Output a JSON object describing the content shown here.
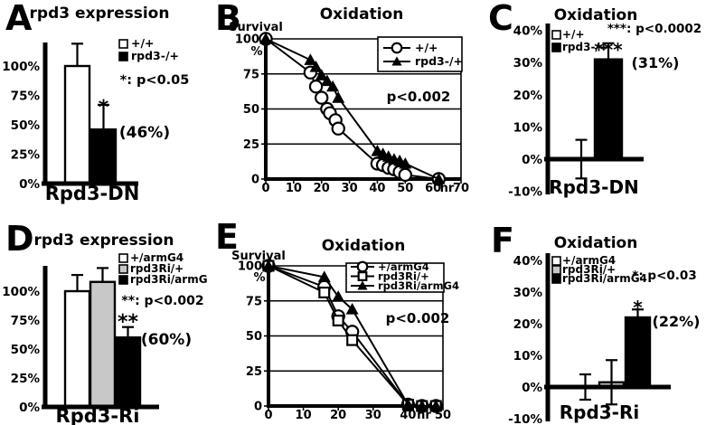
{
  "figure": {
    "background": "#ffffff",
    "ink_color": "#000000",
    "gray_fill": "#c8c8c8"
  },
  "chart_data": [
    {
      "panel": "A",
      "type": "bar",
      "title": "rpd3 expression",
      "xlabel": "Rpd3-DN",
      "ylim": [
        0,
        119
      ],
      "yticks": [
        0,
        25,
        50,
        75,
        100
      ],
      "ytick_labels": [
        "0%",
        "25%",
        "50%",
        "75%",
        "100%"
      ],
      "categories": [
        "+/+",
        "rpd3-/+"
      ],
      "values": [
        100,
        46
      ],
      "errors": [
        {
          "up": 19
        },
        {
          "up": 21
        }
      ],
      "bar_colors": [
        "#ffffff",
        "#000000"
      ],
      "legend": [
        {
          "label": "+/+",
          "color": "#ffffff"
        },
        {
          "label": "rpd3-/+",
          "color": "#000000"
        }
      ],
      "sig": {
        "text": "*",
        "bar": 1
      },
      "annotation": {
        "text": "(46%)",
        "bar": 1
      },
      "p_label": "*: p<0.05"
    },
    {
      "panel": "B",
      "type": "line",
      "title": "Oxidation",
      "ylabel": "Survival",
      "ylabel_unit": "%",
      "xlabel_unit": "hr",
      "xlim": [
        0,
        70
      ],
      "xticks": [
        0,
        10,
        20,
        30,
        40,
        50,
        60,
        70
      ],
      "ylim": [
        0,
        100
      ],
      "yticks": [
        0,
        25,
        50,
        75,
        100
      ],
      "grid": true,
      "legend_position": "top-right",
      "p_label": "p<0.002",
      "series": [
        {
          "name": "+/+",
          "marker": "circle-open",
          "points": [
            [
              0,
              100
            ],
            [
              16,
              76
            ],
            [
              18,
              66
            ],
            [
              20,
              58
            ],
            [
              22,
              50
            ],
            [
              23,
              47
            ],
            [
              25,
              42
            ],
            [
              26,
              36
            ],
            [
              40,
              11
            ],
            [
              42,
              10
            ],
            [
              44,
              8
            ],
            [
              46,
              7
            ],
            [
              48,
              5
            ],
            [
              50,
              3
            ],
            [
              62,
              0
            ]
          ]
        },
        {
          "name": "rpd3-/+",
          "marker": "triangle-filled",
          "points": [
            [
              0,
              100
            ],
            [
              16,
              85
            ],
            [
              18,
              80
            ],
            [
              20,
              74
            ],
            [
              22,
              70
            ],
            [
              24,
              66
            ],
            [
              26,
              58
            ],
            [
              40,
              20
            ],
            [
              42,
              18
            ],
            [
              44,
              16
            ],
            [
              46,
              14
            ],
            [
              48,
              13
            ],
            [
              50,
              11
            ],
            [
              62,
              0
            ]
          ]
        }
      ]
    },
    {
      "panel": "C",
      "type": "bar",
      "title": "Oxidation",
      "xlabel": "Rpd3-DN",
      "ylim": [
        -10,
        40
      ],
      "yticks": [
        -10,
        0,
        10,
        20,
        30,
        40
      ],
      "ytick_labels": [
        "-10%",
        "0%",
        "10%",
        "20%",
        "30%",
        "40%"
      ],
      "categories": [
        "+/+",
        "rpd3-/+"
      ],
      "values": [
        0,
        31
      ],
      "errors": [
        {
          "up": 6,
          "down": 6
        },
        {
          "up": 5
        }
      ],
      "bar_colors": [
        "#ffffff",
        "#000000"
      ],
      "legend": [
        {
          "label": "+/+",
          "color": "#ffffff"
        },
        {
          "label": "rpd3-/+",
          "color": "#000000"
        }
      ],
      "sig": {
        "text": "***",
        "bar": 1
      },
      "annotation": {
        "text": "(31%)",
        "bar": 1
      },
      "p_label": "***: p<0.0002"
    },
    {
      "panel": "D",
      "type": "bar",
      "title": "rpd3 expression",
      "xlabel": "Rpd3-Ri",
      "ylim": [
        0,
        119
      ],
      "yticks": [
        0,
        25,
        50,
        75,
        100
      ],
      "ytick_labels": [
        "0%",
        "25%",
        "50%",
        "75%",
        "100%"
      ],
      "categories": [
        "+/armG4",
        "rpd3Ri/+",
        "rpd3Ri/armG4"
      ],
      "values": [
        100,
        108,
        60
      ],
      "errors": [
        {
          "up": 14
        },
        {
          "up": 12
        },
        {
          "up": 9
        }
      ],
      "bar_colors": [
        "#ffffff",
        "#c8c8c8",
        "#000000"
      ],
      "legend": [
        {
          "label": "+/armG4",
          "color": "#ffffff"
        },
        {
          "label": "rpd3Ri/+",
          "color": "#c8c8c8"
        },
        {
          "label": "rpd3Ri/armG4",
          "color": "#000000"
        }
      ],
      "sig": {
        "text": "**",
        "bar": 2
      },
      "annotation": {
        "text": "(60%)",
        "bar": 2
      },
      "p_label": "**: p<0.002"
    },
    {
      "panel": "E",
      "type": "line",
      "title": "Oxidation",
      "ylabel": "Survival",
      "ylabel_unit": "%",
      "xlabel_unit": "hr",
      "xlim": [
        0,
        50
      ],
      "xticks": [
        0,
        10,
        20,
        30,
        40,
        50
      ],
      "ylim": [
        0,
        100
      ],
      "yticks": [
        0,
        25,
        50,
        75,
        100
      ],
      "grid": true,
      "legend_position": "top-right",
      "p_label": "p<0.002",
      "series": [
        {
          "name": "+/armG4",
          "marker": "circle-open",
          "points": [
            [
              0,
              100
            ],
            [
              16,
              85
            ],
            [
              20,
              64
            ],
            [
              24,
              53
            ],
            [
              40,
              1
            ],
            [
              44,
              0
            ],
            [
              48,
              0
            ]
          ]
        },
        {
          "name": "rpd3Ri/+",
          "marker": "square-open",
          "points": [
            [
              0,
              100
            ],
            [
              16,
              81
            ],
            [
              20,
              61
            ],
            [
              24,
              47
            ],
            [
              40,
              1
            ],
            [
              44,
              0
            ],
            [
              48,
              0
            ]
          ]
        },
        {
          "name": "rpd3Ri/armG4",
          "marker": "triangle-filled",
          "points": [
            [
              0,
              100
            ],
            [
              16,
              92
            ],
            [
              20,
              78
            ],
            [
              24,
              69
            ],
            [
              40,
              1
            ],
            [
              44,
              0
            ],
            [
              48,
              0
            ]
          ]
        }
      ]
    },
    {
      "panel": "F",
      "type": "bar",
      "title": "Oxidation",
      "xlabel": "Rpd3-Ri",
      "ylim": [
        -10,
        40
      ],
      "yticks": [
        -10,
        0,
        10,
        20,
        30,
        40
      ],
      "ytick_labels": [
        "-10%",
        "0%",
        "10%",
        "20%",
        "30%",
        "40%"
      ],
      "categories": [
        "+/armG4",
        "rpd3Ri/+",
        "rpd3Ri/armG4"
      ],
      "values": [
        0,
        1.5,
        22
      ],
      "errors": [
        {
          "up": 4,
          "down": 4
        },
        {
          "up": 7,
          "down": 7
        },
        {
          "up": 2.5
        }
      ],
      "bar_colors": [
        "#ffffff",
        "#c8c8c8",
        "#000000"
      ],
      "legend": [
        {
          "label": "+/armG4",
          "color": "#ffffff"
        },
        {
          "label": "rpd3Ri/+",
          "color": "#c8c8c8"
        },
        {
          "label": "rpd3Ri/armG4",
          "color": "#000000"
        }
      ],
      "sig": {
        "text": "*",
        "bar": 2
      },
      "annotation": {
        "text": "(22%)",
        "bar": 2
      },
      "p_label": "*: p<0.03"
    }
  ]
}
